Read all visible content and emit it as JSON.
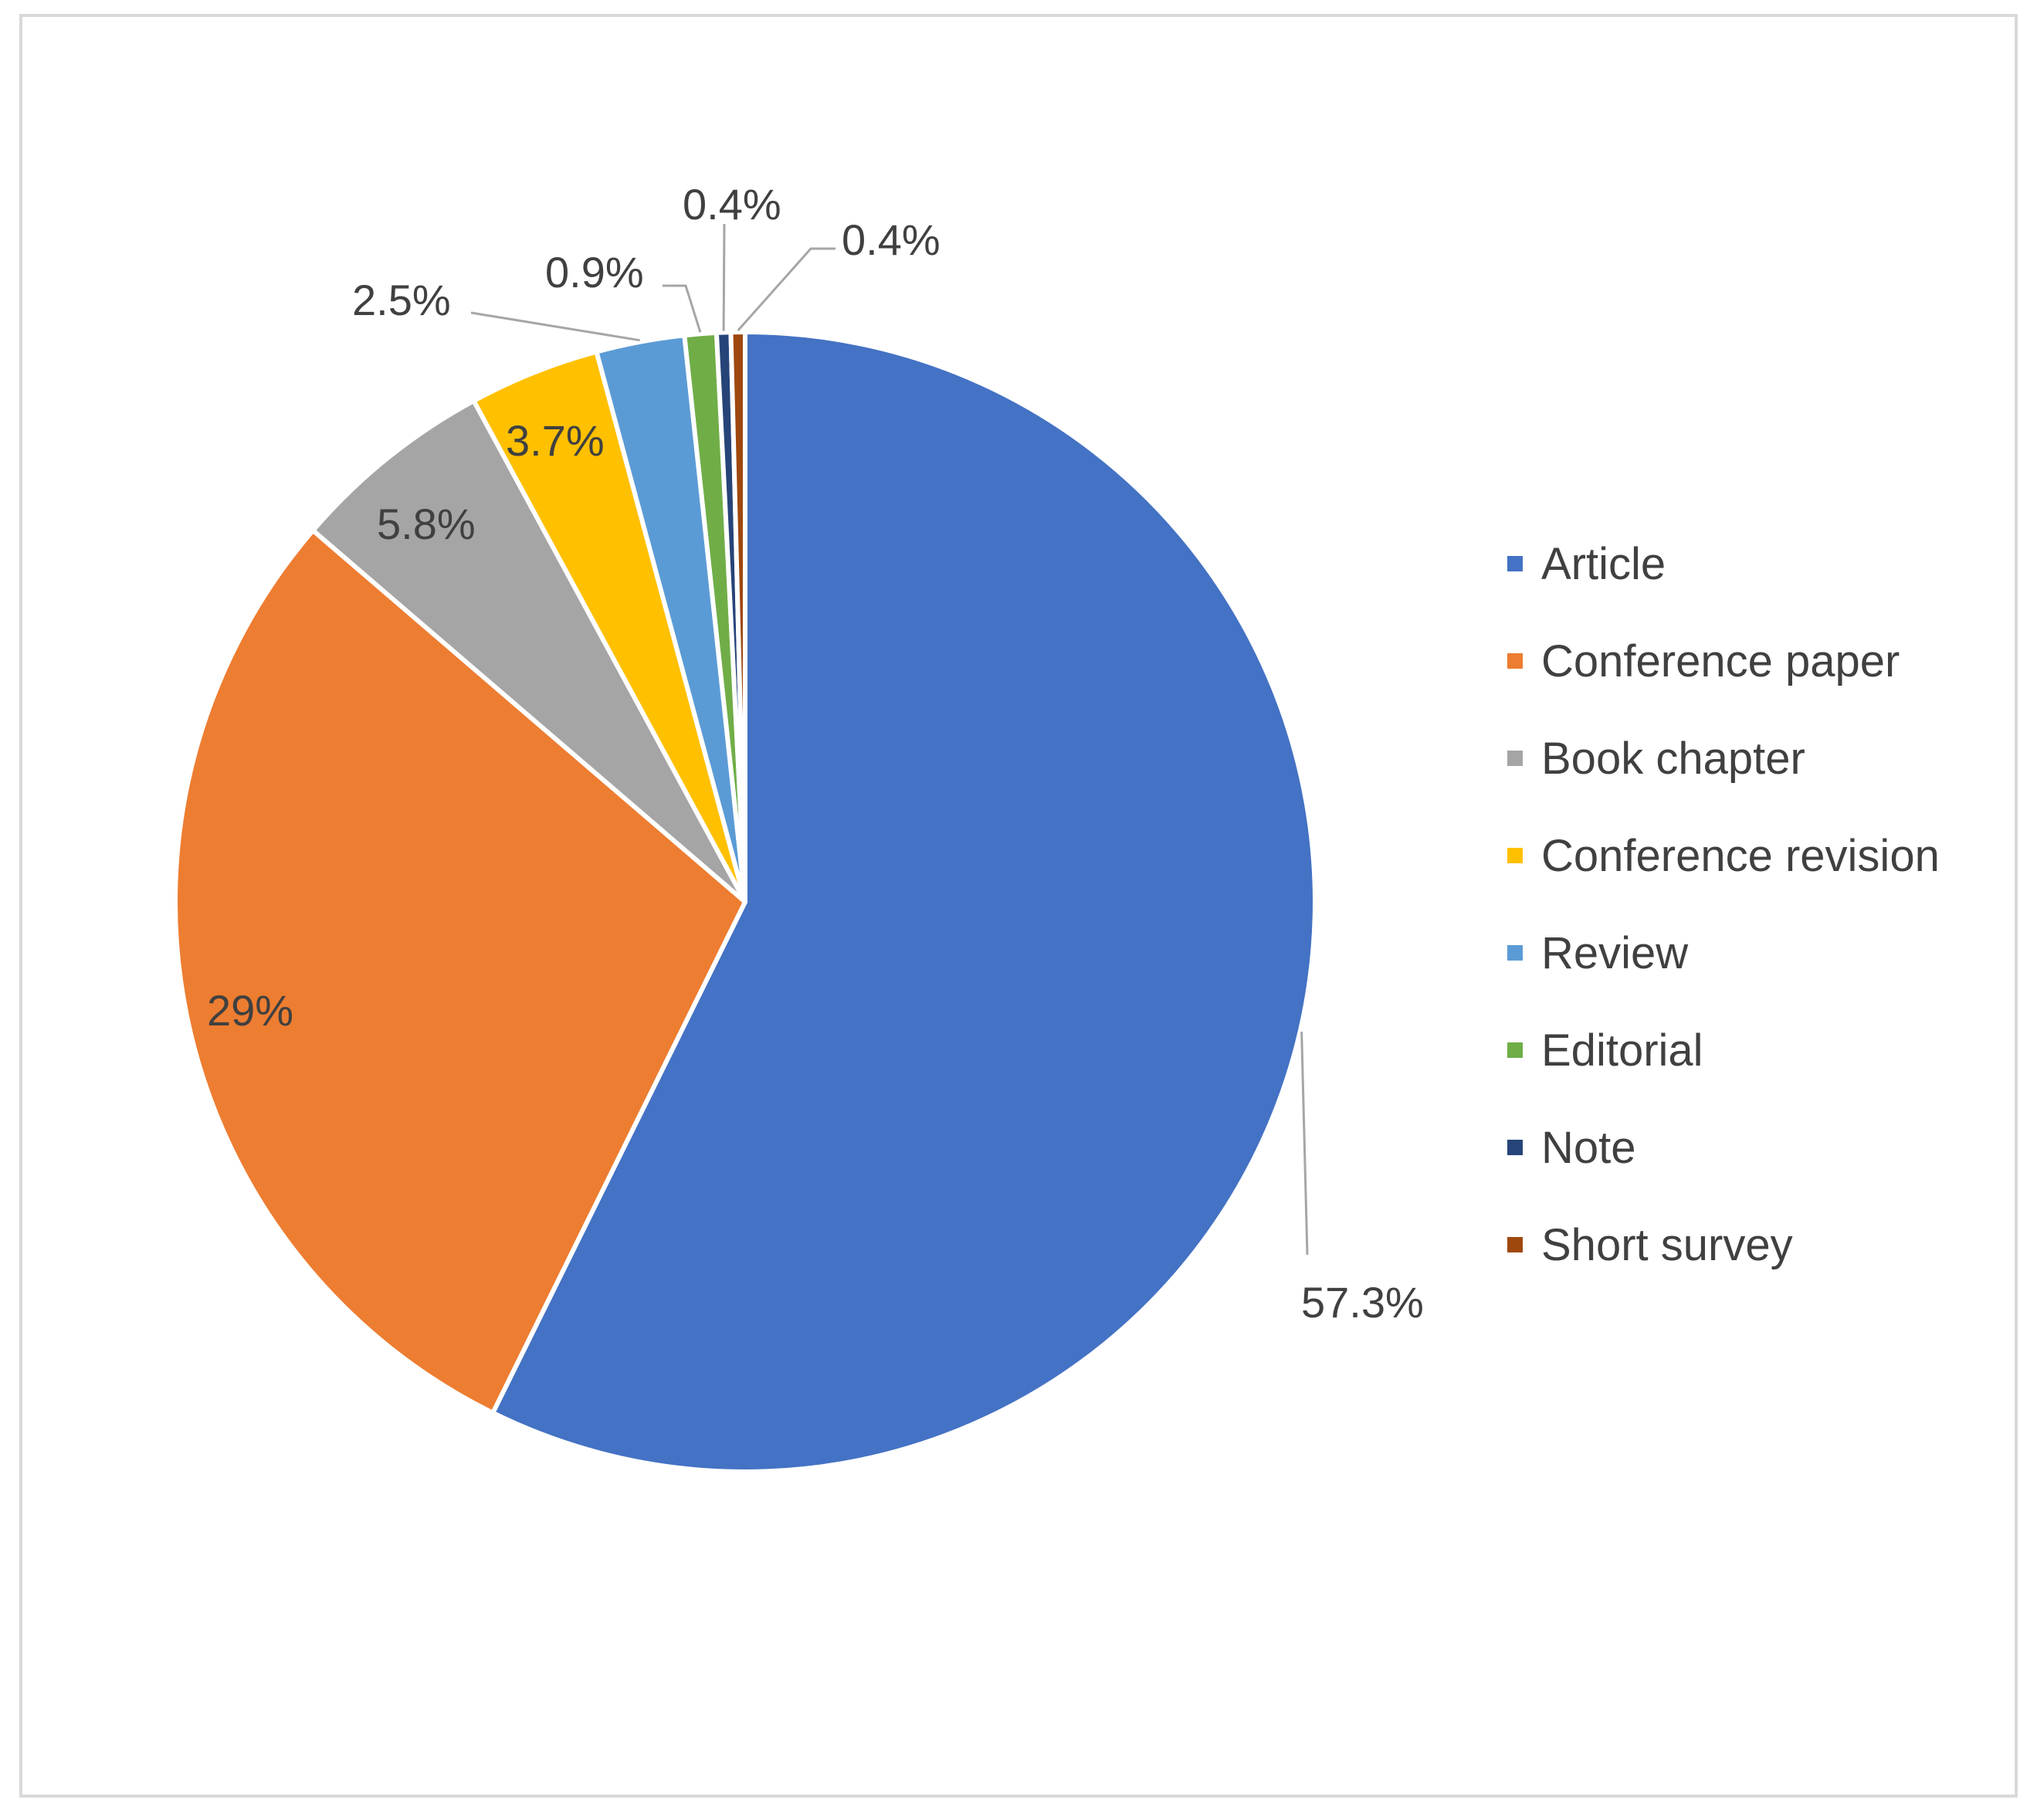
{
  "chart_data": {
    "type": "pie",
    "start_angle_deg": 0,
    "direction": "clockwise",
    "legend_position": "right",
    "slices": [
      {
        "name": "Article",
        "value": 57.3,
        "label": "57.3%",
        "color": "#4472C4"
      },
      {
        "name": "Conference paper",
        "value": 29,
        "label": "29%",
        "color": "#ED7D31"
      },
      {
        "name": "Book chapter",
        "value": 5.8,
        "label": "5.8%",
        "color": "#A5A5A5"
      },
      {
        "name": "Conference revision",
        "value": 3.7,
        "label": "3.7%",
        "color": "#FFC000"
      },
      {
        "name": "Review",
        "value": 2.5,
        "label": "2.5%",
        "color": "#5B9BD5"
      },
      {
        "name": "Editorial",
        "value": 0.9,
        "label": "0.9%",
        "color": "#70AD47"
      },
      {
        "name": "Note",
        "value": 0.4,
        "label": "0.4%",
        "color": "#264478"
      },
      {
        "name": "Short survey",
        "value": 0.4,
        "label": "0.4%",
        "color": "#9E480E"
      }
    ]
  }
}
